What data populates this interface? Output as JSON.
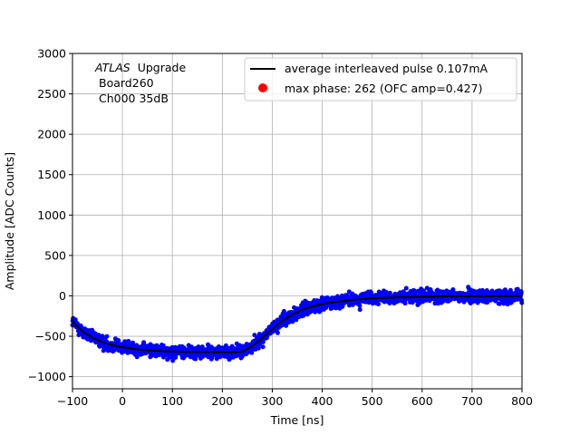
{
  "chart_data": {
    "type": "scatter",
    "title": "",
    "xlabel": "Time [ns]",
    "ylabel": "Amplitude [ADC Counts]",
    "xlim": [
      -100,
      800
    ],
    "ylim": [
      -1150,
      3000
    ],
    "xticks": [
      -100,
      0,
      100,
      200,
      300,
      400,
      500,
      600,
      700,
      800
    ],
    "yticks": [
      -1000,
      -500,
      0,
      500,
      1000,
      1500,
      2000,
      2500,
      3000
    ],
    "grid": true,
    "legend_position": "top-right",
    "annotation": {
      "italic": "ATLAS",
      "line1_rest": "Upgrade",
      "line2": "Board260",
      "line3": "Ch000 35dB"
    },
    "series": [
      {
        "name": "average interleaved pulse 0.107mA",
        "kind": "line",
        "color": "#000000",
        "x": [
          -100,
          -80,
          -60,
          -40,
          -20,
          0,
          20,
          40,
          60,
          80,
          100,
          120,
          140,
          160,
          180,
          200,
          220,
          240,
          260,
          280,
          300,
          320,
          340,
          360,
          380,
          400,
          420,
          440,
          460,
          480,
          500,
          550,
          600,
          650,
          700,
          750,
          800
        ],
        "y": [
          -320,
          -440,
          -520,
          -575,
          -610,
          -635,
          -655,
          -670,
          -678,
          -685,
          -688,
          -692,
          -694,
          -695,
          -696,
          -697,
          -698,
          -690,
          -620,
          -520,
          -410,
          -310,
          -230,
          -170,
          -130,
          -100,
          -80,
          -65,
          -50,
          -40,
          -30,
          -18,
          -10,
          -6,
          -4,
          -3,
          -2
        ]
      },
      {
        "name": "max phase: 262 (OFC amp=0.427)",
        "kind": "marker",
        "color": "#ff0000",
        "x": [],
        "y": []
      },
      {
        "name": "samples",
        "kind": "scatter",
        "color": "#0000ff",
        "noise_sd": 65
      }
    ]
  }
}
